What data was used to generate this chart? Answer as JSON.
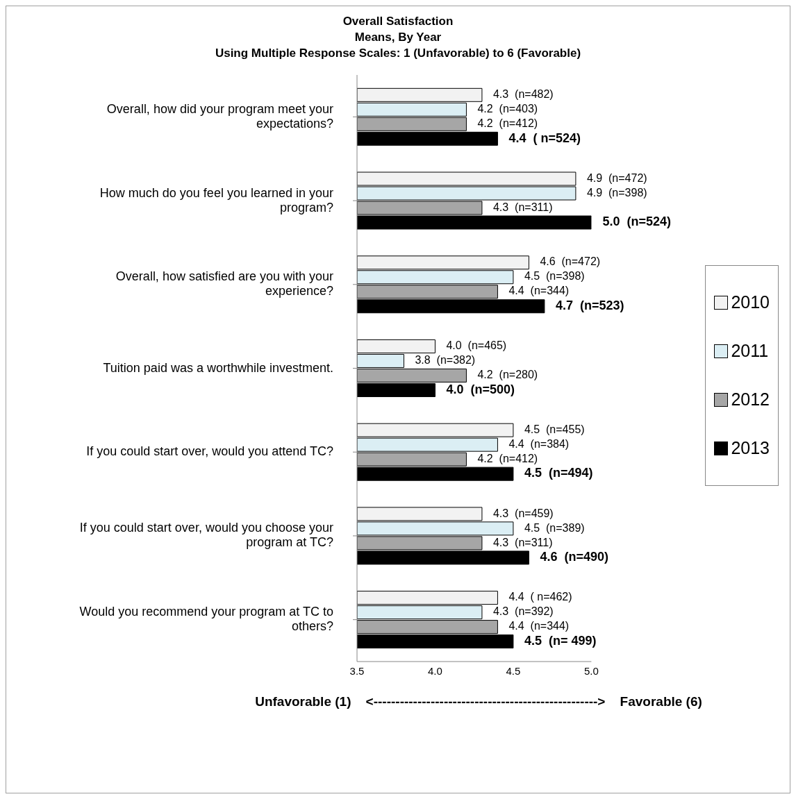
{
  "chart_data": {
    "type": "bar",
    "orientation": "horizontal",
    "title": "Overall Satisfaction",
    "subtitle": "Means, By Year",
    "annotations": [
      "Using Multiple Response Scales: 1 (Unfavorable) to 6 (Favorable)"
    ],
    "xlabel": "Unfavorable (1)    <--------------------------------------------------->    Favorable (6)",
    "categories": [
      "Overall, how did your program meet your expectations?",
      "How much do you feel you learned in your program?",
      "Overall, how satisfied are you with your experience?",
      "Tuition paid was a worthwhile investment.",
      "If you could start over, would you attend TC?",
      "If you could start over, would you choose your program at TC?",
      "Would you recommend your program at TC to others?"
    ],
    "series": [
      {
        "name": "2010",
        "color": "#f2f2f2",
        "values": [
          4.3,
          4.9,
          4.6,
          4.0,
          4.5,
          4.3,
          4.4
        ],
        "value_labels": [
          "4.3  (n=482)",
          "4.9  (n=472)",
          "4.6  (n=472)",
          "4.0  (n=465)",
          "4.5  (n=455)",
          "4.3  (n=459)",
          "4.4  ( n=462)"
        ]
      },
      {
        "name": "2011",
        "color": "#dbeef4",
        "values": [
          4.2,
          4.9,
          4.5,
          3.8,
          4.4,
          4.5,
          4.3
        ],
        "value_labels": [
          "4.2  (n=403)",
          "4.9  (n=398)",
          "4.5  (n=398)",
          "3.8  (n=382)",
          "4.4  (n=384)",
          "4.5  (n=389)",
          "4.3  (n=392)"
        ]
      },
      {
        "name": "2012",
        "color": "#a6a6a6",
        "values": [
          4.2,
          4.3,
          4.4,
          4.2,
          4.2,
          4.3,
          4.4
        ],
        "value_labels": [
          "4.2  (n=412)",
          "4.3  (n=311)",
          "4.4  (n=344)",
          "4.2  (n=280)",
          "4.2  (n=412)",
          "4.3  (n=311)",
          "4.4  (n=344)"
        ]
      },
      {
        "name": "2013",
        "color": "#000000",
        "values": [
          4.4,
          5.0,
          4.7,
          4.0,
          4.5,
          4.6,
          4.5
        ],
        "value_labels": [
          "4.4  ( n=524)",
          "5.0  (n=524)",
          "4.7  (n=523)",
          "4.0  (n=500)",
          "4.5  (n=494)",
          "4.6  (n=490)",
          "4.5  (n= 499)"
        ]
      }
    ],
    "xlim": [
      3.5,
      5.0
    ],
    "xticks": [
      {
        "value": 3.5,
        "label": "3.5"
      },
      {
        "value": 4,
        "label": "4.0"
      },
      {
        "value": 4.5,
        "label": "4.5"
      },
      {
        "value": 5,
        "label": "5.0"
      }
    ],
    "grid": false,
    "legend": "right"
  }
}
